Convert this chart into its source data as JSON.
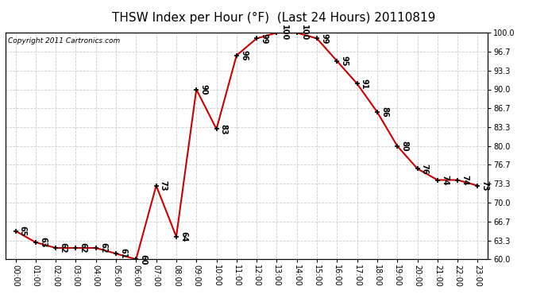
{
  "title": "THSW Index per Hour (°F)  (Last 24 Hours) 20110819",
  "copyright": "Copyright 2011 Cartronics.com",
  "hours": [
    "00:00",
    "01:00",
    "02:00",
    "03:00",
    "04:00",
    "05:00",
    "06:00",
    "07:00",
    "08:00",
    "09:00",
    "10:00",
    "11:00",
    "12:00",
    "13:00",
    "14:00",
    "15:00",
    "16:00",
    "17:00",
    "18:00",
    "19:00",
    "20:00",
    "21:00",
    "22:00",
    "23:00"
  ],
  "values": [
    65,
    63,
    62,
    62,
    62,
    61,
    60,
    73,
    64,
    90,
    83,
    96,
    99,
    100,
    100,
    99,
    95,
    91,
    86,
    80,
    76,
    74,
    74,
    73
  ],
  "ylim": [
    60.0,
    100.0
  ],
  "yticks": [
    60.0,
    63.3,
    66.7,
    70.0,
    73.3,
    76.7,
    80.0,
    83.3,
    86.7,
    90.0,
    93.3,
    96.7,
    100.0
  ],
  "ytick_labels": [
    "60.0",
    "63.3",
    "66.7",
    "70.0",
    "73.3",
    "76.7",
    "80.0",
    "83.3",
    "86.7",
    "90.0",
    "93.3",
    "96.7",
    "100.0"
  ],
  "line_color": "#cc0000",
  "marker_color": "#000000",
  "bg_color": "#ffffff",
  "grid_color": "#cccccc",
  "title_fontsize": 11,
  "label_fontsize": 7,
  "annotation_fontsize": 7,
  "copyright_fontsize": 6.5
}
